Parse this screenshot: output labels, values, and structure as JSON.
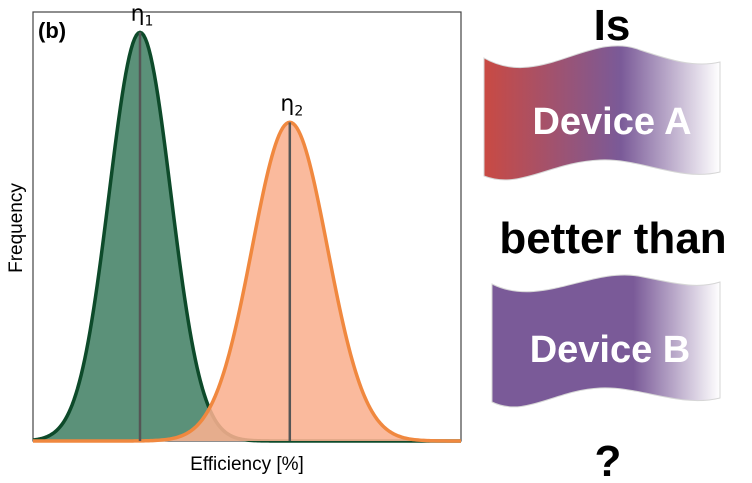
{
  "chart_data": {
    "type": "area",
    "panel_label": "(b)",
    "xlabel": "Efficiency [%]",
    "ylabel": "Frequency",
    "xlim": [
      0,
      100
    ],
    "ylim": [
      0,
      1.05
    ],
    "grid": false,
    "series": [
      {
        "name": "Device A",
        "peak_label": "η",
        "peak_sub": "1",
        "mean": 25,
        "sd": 7.2,
        "amplitude": 1.0,
        "fill": "#5b9179",
        "stroke": "#0d4a2a"
      },
      {
        "name": "Device B",
        "peak_label": "η",
        "peak_sub": "2",
        "mean": 60,
        "sd": 8.8,
        "amplitude": 0.78,
        "fill": "#f9b190",
        "stroke": "#f0883f"
      }
    ],
    "mean_line_color": "#555555"
  },
  "question": {
    "line1": "Is",
    "line2": "better than",
    "line3": "?",
    "banner_a": {
      "label": "Device A",
      "color_start": "#c94a43",
      "color_mid": "#7a5a98",
      "color_end": "#ffffff"
    },
    "banner_b": {
      "label": "Device B",
      "color_start": "#7a5a98",
      "color_mid": "#7a5a98",
      "color_end": "#ffffff"
    }
  }
}
